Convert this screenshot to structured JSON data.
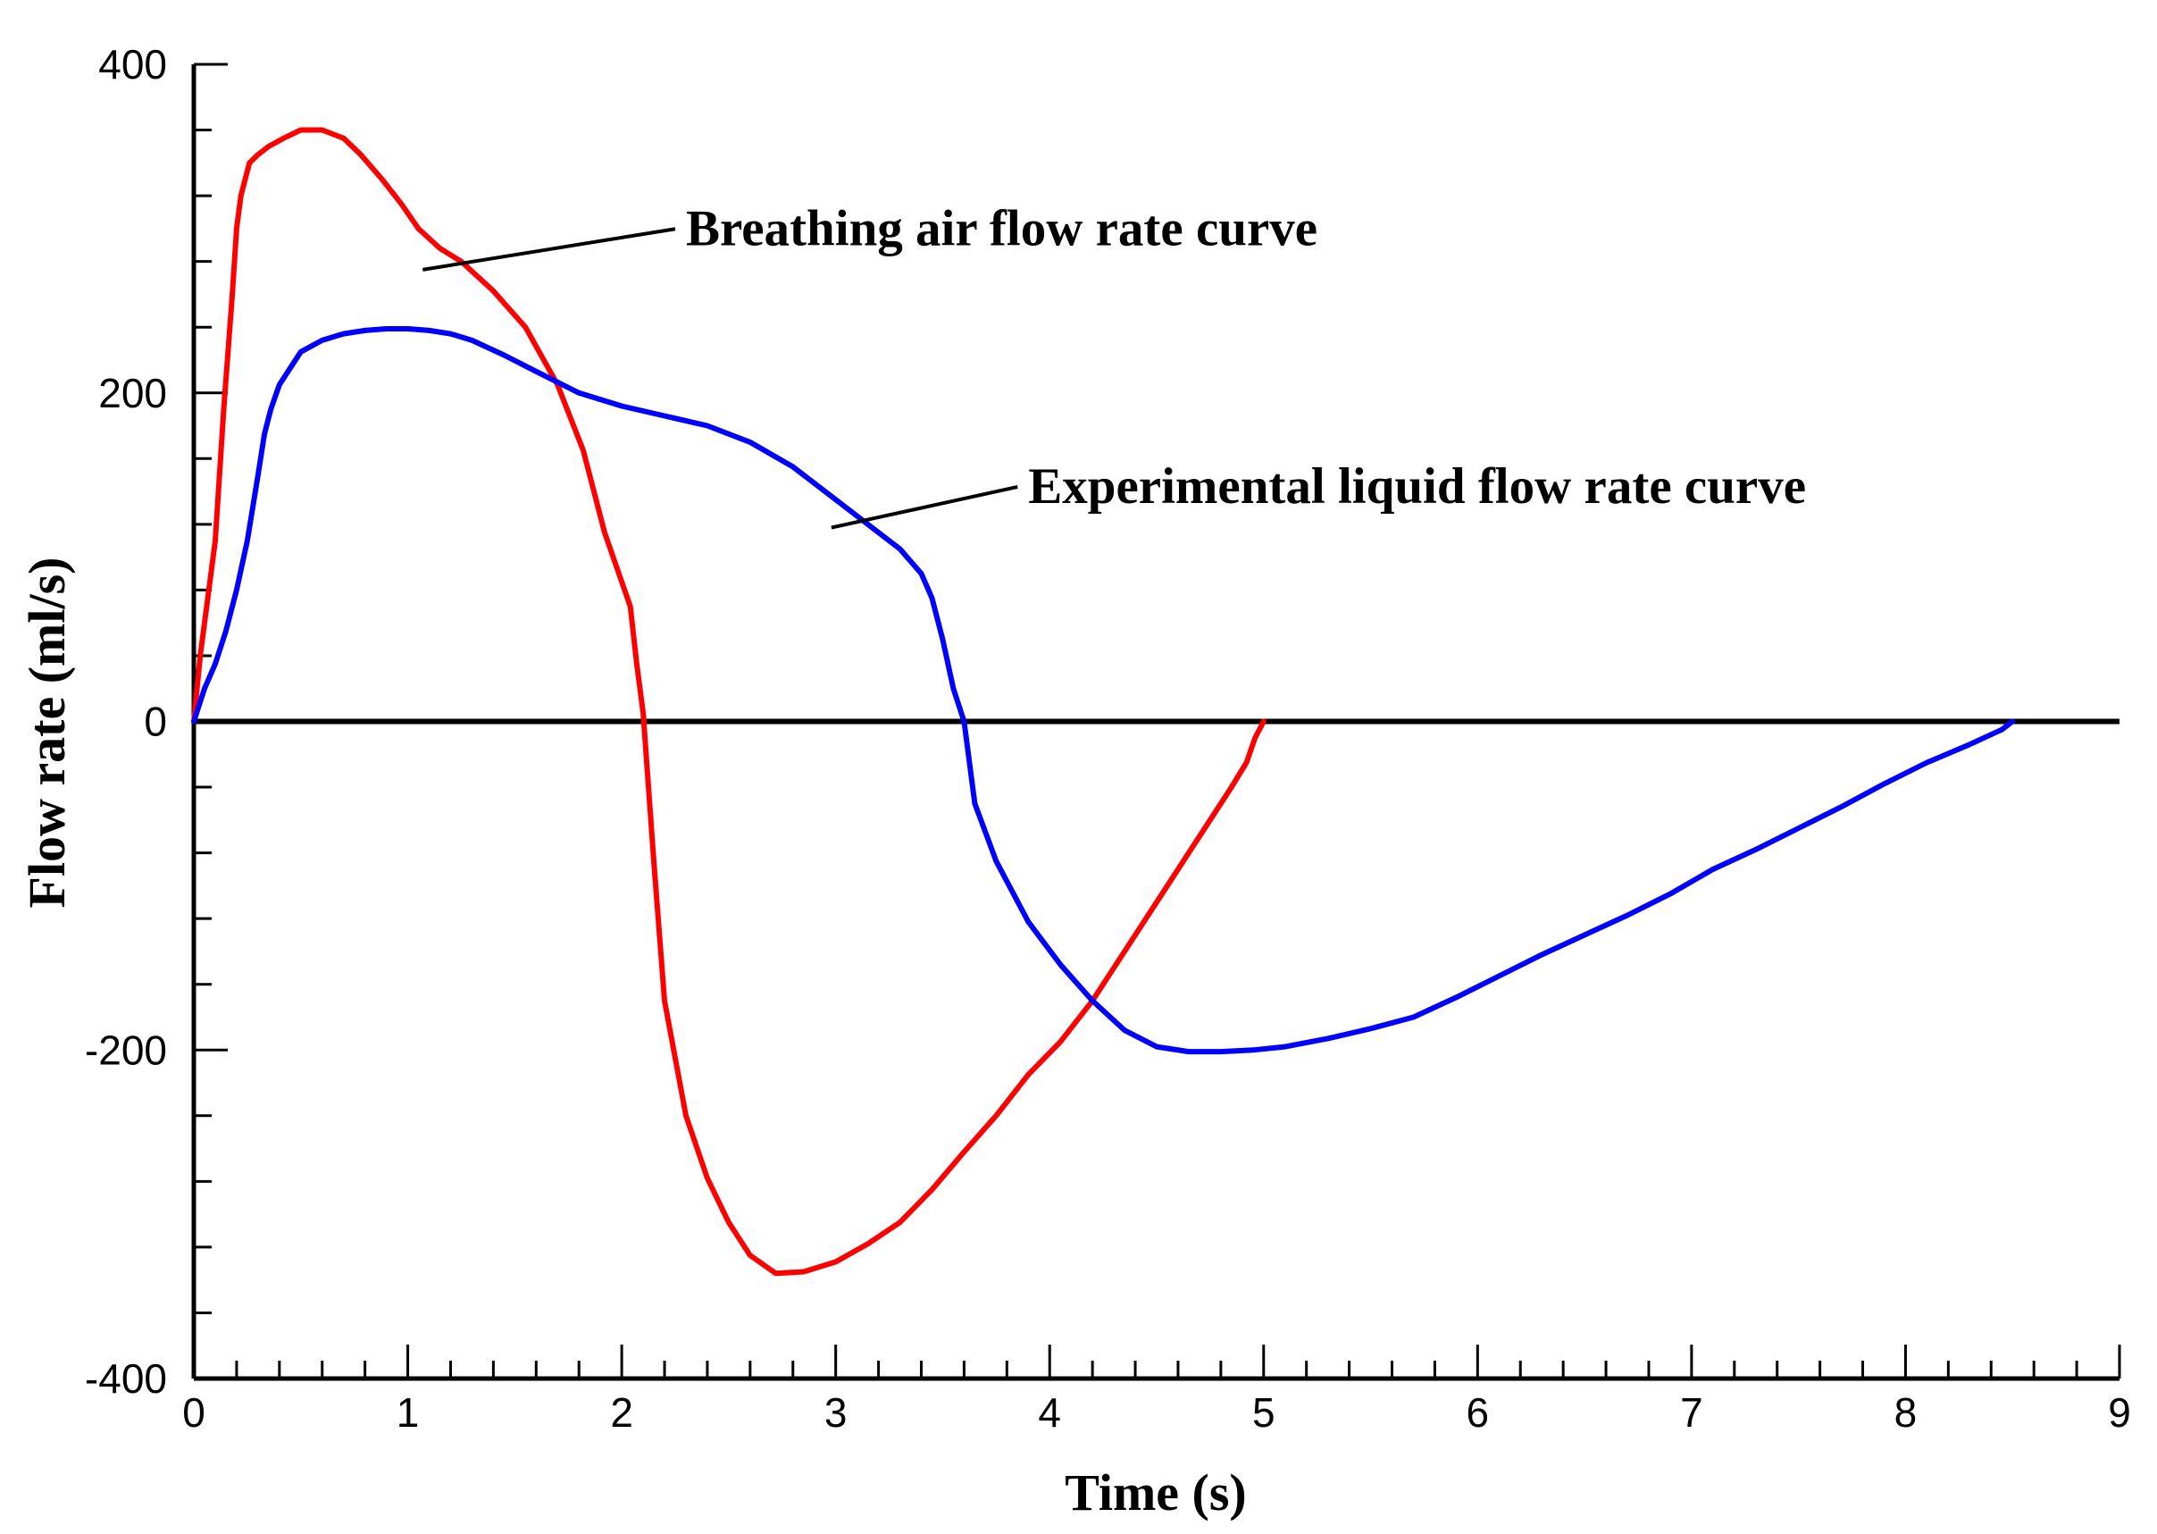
{
  "chart_data": {
    "type": "line",
    "title": "",
    "xlabel": "Time (s)",
    "ylabel": "Flow rate (ml/s)",
    "xlim": [
      0,
      9
    ],
    "ylim": [
      -400,
      400
    ],
    "xticks": [
      0,
      1,
      2,
      3,
      4,
      5,
      6,
      7,
      8,
      9
    ],
    "yticks": [
      -400,
      -200,
      0,
      200,
      400
    ],
    "xtick_labels": [
      "0",
      "1",
      "2",
      "3",
      "4",
      "5",
      "6",
      "7",
      "8",
      "9"
    ],
    "ytick_labels": [
      "-400",
      "-200",
      "0",
      "200",
      "400"
    ],
    "zero_line": true,
    "grid": false,
    "series": [
      {
        "name": "Breathing air flow rate curve",
        "color": "#ff0000",
        "x": [
          0,
          0.03,
          0.06,
          0.1,
          0.14,
          0.18,
          0.2,
          0.22,
          0.26,
          0.3,
          0.35,
          0.42,
          0.5,
          0.6,
          0.7,
          0.78,
          0.88,
          0.97,
          1.05,
          1.15,
          1.25,
          1.4,
          1.55,
          1.7,
          1.82,
          1.92,
          2.0,
          2.04,
          2.07,
          2.1,
          2.15,
          2.2,
          2.3,
          2.4,
          2.5,
          2.6,
          2.72,
          2.85,
          3.0,
          3.15,
          3.3,
          3.45,
          3.6,
          3.75,
          3.9,
          4.05,
          4.2,
          4.35,
          4.5,
          4.65,
          4.75,
          4.85,
          4.92,
          4.96,
          5.0
        ],
        "y": [
          0,
          40,
          70,
          110,
          190,
          260,
          300,
          320,
          340,
          345,
          350,
          355,
          360,
          360,
          355,
          345,
          330,
          315,
          300,
          288,
          280,
          262,
          240,
          205,
          165,
          115,
          85,
          70,
          35,
          5,
          -85,
          -170,
          -240,
          -278,
          -305,
          -325,
          -336,
          -335,
          -329,
          -318,
          -305,
          -285,
          -262,
          -240,
          -215,
          -195,
          -170,
          -140,
          -110,
          -80,
          -60,
          -40,
          -25,
          -10,
          0
        ]
      },
      {
        "name": "Experimental liquid flow rate curve",
        "color": "#0000ff",
        "x": [
          0,
          0.05,
          0.1,
          0.15,
          0.2,
          0.25,
          0.3,
          0.33,
          0.36,
          0.4,
          0.45,
          0.5,
          0.6,
          0.7,
          0.8,
          0.9,
          1.0,
          1.1,
          1.2,
          1.3,
          1.45,
          1.6,
          1.8,
          2.0,
          2.2,
          2.4,
          2.6,
          2.8,
          3.0,
          3.15,
          3.3,
          3.4,
          3.45,
          3.5,
          3.55,
          3.6,
          3.65,
          3.75,
          3.9,
          4.05,
          4.2,
          4.35,
          4.5,
          4.65,
          4.8,
          4.95,
          5.1,
          5.3,
          5.5,
          5.7,
          5.9,
          6.1,
          6.3,
          6.5,
          6.7,
          6.9,
          7.1,
          7.3,
          7.5,
          7.7,
          7.9,
          8.1,
          8.3,
          8.45,
          8.5
        ],
        "y": [
          0,
          20,
          35,
          55,
          80,
          110,
          150,
          175,
          190,
          205,
          215,
          225,
          232,
          236,
          238,
          239,
          239,
          238,
          236,
          232,
          223,
          213,
          200,
          192,
          186,
          180,
          170,
          155,
          135,
          120,
          105,
          90,
          75,
          50,
          20,
          0,
          -50,
          -85,
          -122,
          -148,
          -170,
          -188,
          -198,
          -201,
          -201,
          -200,
          -198,
          -193,
          -187,
          -180,
          -168,
          -155,
          -142,
          -130,
          -118,
          -105,
          -90,
          -78,
          -65,
          -52,
          -38,
          -25,
          -14,
          -5,
          0
        ]
      }
    ],
    "annotations": [
      {
        "text": "Breathing air flow rate curve",
        "target": [
          1.07,
          275
        ],
        "label_at": [
          2.3,
          290
        ]
      },
      {
        "text": "Experimental liquid flow rate curve",
        "target": [
          2.98,
          118
        ],
        "label_at": [
          3.9,
          133
        ]
      }
    ]
  }
}
